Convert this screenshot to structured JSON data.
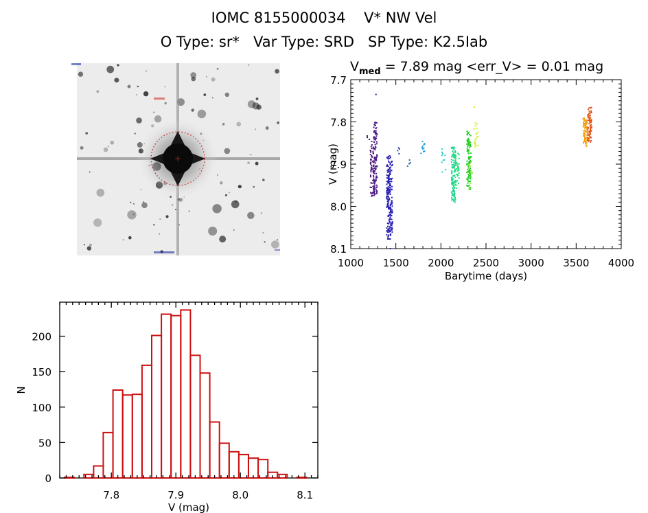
{
  "header": {
    "line1": [
      "IOMC 8155000034",
      "V* NW Vel"
    ],
    "line2": [
      "O Type: sr*",
      "Var Type: SRD",
      "SP Type: K2.5Iab"
    ]
  },
  "image_stamp": {
    "description": "Greyscale sky image centred on target star with dotted red aperture circle and crosshair",
    "aperture_color": "#d01010"
  },
  "chart_data": [
    {
      "type": "scatter",
      "title": "V_med = 7.89 mag <err_V> = 0.01 mag",
      "title_parts": {
        "prefix": "V",
        "subscript": "med",
        "rest": " = 7.89 mag <err_V> = 0.01 mag"
      },
      "xlabel": "Barytime (days)",
      "ylabel": "V (mag)",
      "xlim": [
        1000,
        4000
      ],
      "ylim": [
        7.7,
        8.1
      ],
      "y_inverted": true,
      "xticks": [
        "1000",
        "1500",
        "2000",
        "2500",
        "3000",
        "3500",
        "4000"
      ],
      "yticks": [
        "7.7",
        "7.8",
        "7.9",
        "8.0",
        "8.1"
      ],
      "colormap": "rainbow by time",
      "clusters": [
        {
          "x": 1190,
          "ymin": 7.83,
          "ymax": 7.845,
          "color": "#301060",
          "n": 3
        },
        {
          "x": 1240,
          "ymin": 7.84,
          "ymax": 7.98,
          "color": "#501878",
          "n": 60
        },
        {
          "x": 1270,
          "ymin": 7.8,
          "ymax": 7.98,
          "color": "#4a1a8a",
          "n": 120
        },
        {
          "x": 1265,
          "ymin": 7.735,
          "ymax": 7.735,
          "color": "#4a1a8a",
          "n": 1
        },
        {
          "x": 1420,
          "ymin": 7.88,
          "ymax": 8.08,
          "color": "#2a20b0",
          "n": 140
        },
        {
          "x": 1440,
          "ymin": 7.89,
          "ymax": 8.07,
          "color": "#2820b8",
          "n": 80
        },
        {
          "x": 1430,
          "ymin": 8.1,
          "ymax": 8.1,
          "color": "#2820b8",
          "n": 1
        },
        {
          "x": 1540,
          "ymin": 7.86,
          "ymax": 7.88,
          "color": "#2a40a8",
          "n": 4
        },
        {
          "x": 1640,
          "ymin": 7.89,
          "ymax": 7.91,
          "color": "#2860a8",
          "n": 4
        },
        {
          "x": 1800,
          "ymin": 7.845,
          "ymax": 7.88,
          "color": "#20a0d8",
          "n": 14
        },
        {
          "x": 2030,
          "ymin": 7.84,
          "ymax": 7.92,
          "color": "#20d0d0",
          "n": 10
        },
        {
          "x": 2140,
          "ymin": 7.86,
          "ymax": 7.99,
          "color": "#20d890",
          "n": 120
        },
        {
          "x": 2180,
          "ymin": 7.87,
          "ymax": 7.96,
          "color": "#20e070",
          "n": 40
        },
        {
          "x": 2310,
          "ymin": 7.82,
          "ymax": 7.96,
          "color": "#20d020",
          "n": 110
        },
        {
          "x": 2330,
          "ymin": 7.9,
          "ymax": 7.96,
          "color": "#90e020",
          "n": 10
        },
        {
          "x": 2390,
          "ymin": 7.8,
          "ymax": 7.86,
          "color": "#d0f020",
          "n": 20
        },
        {
          "x": 2385,
          "ymin": 7.765,
          "ymax": 7.765,
          "color": "#d0f020",
          "n": 1
        },
        {
          "x": 3600,
          "ymin": 7.79,
          "ymax": 7.86,
          "color": "#f0a010",
          "n": 70
        },
        {
          "x": 3650,
          "ymin": 7.765,
          "ymax": 7.85,
          "color": "#e05010",
          "n": 70
        }
      ]
    },
    {
      "type": "bar",
      "subtype": "histogram",
      "xlabel": "V (mag)",
      "ylabel": "N",
      "xlim": [
        7.72,
        8.12
      ],
      "ylim": [
        0,
        248
      ],
      "xticks": [
        "7.8",
        "7.9",
        "8.0",
        "8.1"
      ],
      "yticks": [
        "0",
        "50",
        "100",
        "150",
        "200"
      ],
      "bin_width": 0.015,
      "bin_start": 7.7275,
      "values": [
        1,
        0,
        5,
        17,
        64,
        124,
        117,
        118,
        159,
        201,
        231,
        229,
        237,
        173,
        148,
        79,
        49,
        37,
        33,
        28,
        26,
        8,
        5,
        0,
        1
      ],
      "bar_color": "#cc1111"
    }
  ]
}
